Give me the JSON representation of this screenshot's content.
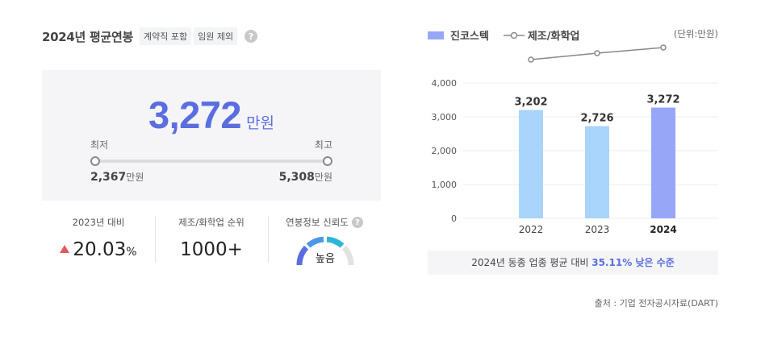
{
  "header": {
    "title": "2024년 평균연봉",
    "tags": [
      "계약직 포함",
      "임원 제외"
    ],
    "help": "?"
  },
  "salary": {
    "value": "3,272",
    "unit": "만원",
    "min_label": "최저",
    "max_label": "최고",
    "min_value": "2,367",
    "max_value": "5,308",
    "range_unit": "만원"
  },
  "stats": {
    "yoy_label": "2023년 대비",
    "yoy_value": "20.03",
    "yoy_unit": "%",
    "rank_label": "제조/화학업 순위",
    "rank_value": "1000+",
    "reliability_label": "연봉정보 신뢰도",
    "reliability_value": "높음",
    "reliability_level": 0.75
  },
  "legend": {
    "company": "진코스텍",
    "industry": "제조/화학업",
    "unit_note": "(단위:만원)"
  },
  "colors": {
    "accent": "#5b6ee0",
    "bar_past": "#a9d4fb",
    "bar_current": "#98a6f8",
    "industry_line": "#888888",
    "up": "#e05a5a"
  },
  "chart_data": {
    "type": "bar",
    "categories": [
      "2022",
      "2023",
      "2024"
    ],
    "series": [
      {
        "name": "진코스텍",
        "values": [
          3202,
          2726,
          3272
        ]
      }
    ],
    "data_labels": [
      "",
      "3,202",
      "2,726",
      "3,272"
    ],
    "ylim": [
      0,
      4000
    ],
    "yticks": [
      "0",
      "1,000",
      "2,000",
      "3,000",
      "4,000"
    ],
    "grid": true,
    "industry_line_trend": "increasing"
  },
  "compare": {
    "prefix": "2024년 동종 업종 평균 대비 ",
    "highlight": "35.11% 낮은 수준"
  },
  "source": "출처 : 기업 전자공시자료(DART)"
}
